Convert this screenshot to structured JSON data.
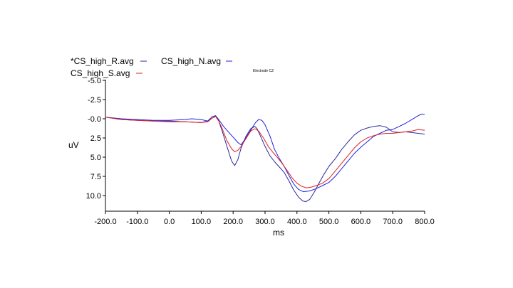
{
  "chart_data": {
    "type": "line",
    "annotation": "Electrode CZ",
    "xlabel": "ms",
    "ylabel": "uV",
    "xlim": [
      -200,
      800
    ],
    "ylim": [
      -5,
      12
    ],
    "y_inverted": true,
    "x_ticks": [
      -200,
      -100,
      0,
      100,
      200,
      300,
      400,
      500,
      600,
      700,
      800
    ],
    "x_tick_labels": [
      "-200.0",
      "-100.0",
      "0.0",
      "100.0",
      "200.0",
      "300.0",
      "400.0",
      "500.0",
      "600.0",
      "700.0",
      "800.0"
    ],
    "y_ticks": [
      -5,
      -2.5,
      0,
      2.5,
      5,
      7.5,
      10
    ],
    "y_tick_labels": [
      "-5.0",
      "-2.5",
      "-0.0",
      "2.5",
      "5.0",
      "7.5",
      "10.0"
    ],
    "grid": false,
    "legend_position": "top-left",
    "series": [
      {
        "name": "*CS_high_R.avg",
        "color": "#2a2a9e",
        "points": [
          [
            -200,
            -0.2
          ],
          [
            -150,
            0.1
          ],
          [
            -100,
            0.2
          ],
          [
            -50,
            0.3
          ],
          [
            0,
            0.3
          ],
          [
            50,
            0.4
          ],
          [
            100,
            0.5
          ],
          [
            120,
            0.3
          ],
          [
            135,
            -0.3
          ],
          [
            145,
            -0.4
          ],
          [
            155,
            0.3
          ],
          [
            165,
            1.5
          ],
          [
            180,
            3.5
          ],
          [
            195,
            5.5
          ],
          [
            205,
            6.1
          ],
          [
            215,
            5.3
          ],
          [
            225,
            3.8
          ],
          [
            240,
            2.3
          ],
          [
            255,
            1.3
          ],
          [
            268,
            1.0
          ],
          [
            275,
            1.3
          ],
          [
            285,
            2.2
          ],
          [
            300,
            3.6
          ],
          [
            315,
            4.8
          ],
          [
            330,
            5.6
          ],
          [
            345,
            6.3
          ],
          [
            360,
            7.0
          ],
          [
            375,
            8.1
          ],
          [
            390,
            9.3
          ],
          [
            405,
            10.2
          ],
          [
            418,
            10.7
          ],
          [
            428,
            10.8
          ],
          [
            440,
            10.5
          ],
          [
            455,
            9.5
          ],
          [
            470,
            8.3
          ],
          [
            485,
            7.2
          ],
          [
            500,
            6.2
          ],
          [
            520,
            5.2
          ],
          [
            540,
            4.0
          ],
          [
            560,
            3.0
          ],
          [
            580,
            2.1
          ],
          [
            600,
            1.5
          ],
          [
            620,
            1.2
          ],
          [
            640,
            1.0
          ],
          [
            660,
            0.9
          ],
          [
            680,
            1.1
          ],
          [
            700,
            1.7
          ],
          [
            720,
            1.8
          ],
          [
            740,
            1.7
          ],
          [
            760,
            1.8
          ],
          [
            780,
            1.9
          ],
          [
            800,
            2.0
          ]
        ]
      },
      {
        "name": "CS_high_N.avg",
        "color": "#2020e0",
        "points": [
          [
            -200,
            -0.2
          ],
          [
            -150,
            0.0
          ],
          [
            -100,
            0.1
          ],
          [
            -50,
            0.2
          ],
          [
            0,
            0.2
          ],
          [
            50,
            0.1
          ],
          [
            70,
            0.0
          ],
          [
            100,
            0.1
          ],
          [
            120,
            0.3
          ],
          [
            135,
            -0.1
          ],
          [
            145,
            -0.4
          ],
          [
            155,
            0.1
          ],
          [
            170,
            1.0
          ],
          [
            185,
            1.7
          ],
          [
            200,
            2.4
          ],
          [
            215,
            3.1
          ],
          [
            225,
            3.4
          ],
          [
            240,
            2.5
          ],
          [
            255,
            1.5
          ],
          [
            270,
            0.5
          ],
          [
            280,
            0.1
          ],
          [
            290,
            0.2
          ],
          [
            300,
            0.8
          ],
          [
            315,
            2.2
          ],
          [
            330,
            4.0
          ],
          [
            345,
            5.2
          ],
          [
            360,
            6.2
          ],
          [
            375,
            7.4
          ],
          [
            390,
            8.5
          ],
          [
            405,
            9.2
          ],
          [
            420,
            9.5
          ],
          [
            440,
            9.4
          ],
          [
            460,
            9.1
          ],
          [
            480,
            8.7
          ],
          [
            500,
            8.3
          ],
          [
            520,
            7.5
          ],
          [
            540,
            6.5
          ],
          [
            560,
            5.5
          ],
          [
            580,
            4.5
          ],
          [
            600,
            3.7
          ],
          [
            620,
            3.0
          ],
          [
            640,
            2.3
          ],
          [
            660,
            1.9
          ],
          [
            680,
            1.5
          ],
          [
            700,
            1.4
          ],
          [
            720,
            1.0
          ],
          [
            740,
            0.6
          ],
          [
            760,
            0.1
          ],
          [
            780,
            -0.4
          ],
          [
            790,
            -0.6
          ],
          [
            800,
            -0.6
          ]
        ]
      },
      {
        "name": "CS_high_S.avg",
        "color": "#e02020",
        "points": [
          [
            -200,
            -0.2
          ],
          [
            -150,
            0.1
          ],
          [
            -100,
            0.2
          ],
          [
            -50,
            0.3
          ],
          [
            0,
            0.4
          ],
          [
            50,
            0.4
          ],
          [
            100,
            0.5
          ],
          [
            120,
            0.4
          ],
          [
            135,
            -0.1
          ],
          [
            145,
            -0.3
          ],
          [
            155,
            0.3
          ],
          [
            165,
            1.2
          ],
          [
            180,
            2.8
          ],
          [
            195,
            3.9
          ],
          [
            205,
            4.3
          ],
          [
            215,
            4.1
          ],
          [
            225,
            3.6
          ],
          [
            240,
            2.6
          ],
          [
            255,
            1.6
          ],
          [
            268,
            1.3
          ],
          [
            280,
            1.6
          ],
          [
            295,
            2.5
          ],
          [
            310,
            3.6
          ],
          [
            325,
            4.4
          ],
          [
            340,
            5.1
          ],
          [
            355,
            5.9
          ],
          [
            370,
            6.8
          ],
          [
            385,
            7.7
          ],
          [
            400,
            8.4
          ],
          [
            415,
            8.8
          ],
          [
            430,
            9.0
          ],
          [
            445,
            8.9
          ],
          [
            460,
            8.7
          ],
          [
            480,
            8.4
          ],
          [
            500,
            7.8
          ],
          [
            520,
            6.8
          ],
          [
            540,
            5.8
          ],
          [
            560,
            4.8
          ],
          [
            580,
            3.8
          ],
          [
            600,
            3.0
          ],
          [
            620,
            2.5
          ],
          [
            640,
            2.2
          ],
          [
            660,
            2.0
          ],
          [
            680,
            1.9
          ],
          [
            700,
            1.9
          ],
          [
            720,
            1.8
          ],
          [
            740,
            1.7
          ],
          [
            760,
            1.6
          ],
          [
            780,
            1.4
          ],
          [
            800,
            1.5
          ]
        ]
      }
    ]
  }
}
